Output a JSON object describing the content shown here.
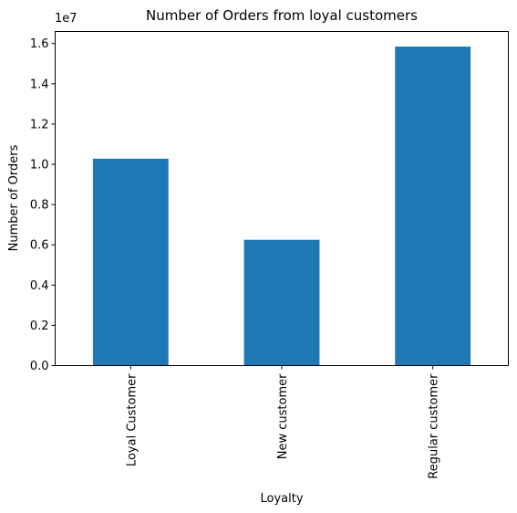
{
  "chart_data": {
    "type": "bar",
    "title": "Number of Orders from loyal customers",
    "xlabel": "Loyalty",
    "ylabel": "Number of Orders",
    "y_offset_label": "1e7",
    "categories": [
      "Loyal Customer",
      "New customer",
      "Regular customer"
    ],
    "values": [
      10280000,
      6250000,
      15850000
    ],
    "ylim": [
      0,
      16600000
    ],
    "yticks": [
      0,
      2000000,
      4000000,
      6000000,
      8000000,
      10000000,
      12000000,
      14000000,
      16000000
    ],
    "ytick_labels": [
      "0.0",
      "0.2",
      "0.4",
      "0.6",
      "0.8",
      "1.0",
      "1.2",
      "1.4",
      "1.6"
    ],
    "grid": false,
    "legend": "none",
    "bar_color": "#1f77b4"
  }
}
